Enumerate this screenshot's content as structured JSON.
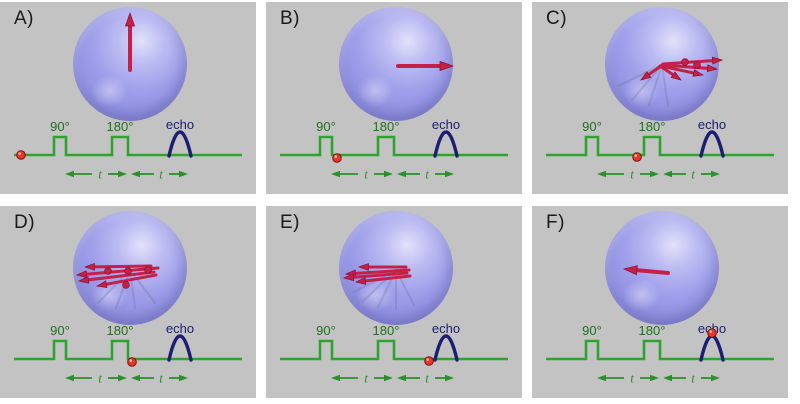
{
  "colors": {
    "panel_bg": "#c3c3c3",
    "pulse_green": "#2da42d",
    "label_green": "#20701f",
    "t_green": "#2b8f2b",
    "echo_navy": "#1d1d72",
    "ball_red": "#e5372b",
    "arrow_red": "#c52148",
    "arrow_dark": "#8f1030"
  },
  "pulse": {
    "p90": "90°",
    "p180": "180°",
    "echo": "echo",
    "t": "t"
  },
  "panels": [
    {
      "label": "A)",
      "ball": [
        13,
        37
      ],
      "arrows": [
        [
          130,
          68,
          130,
          11
        ]
      ],
      "dots": [],
      "ghosts": []
    },
    {
      "label": "B)",
      "ball": [
        63,
        40
      ],
      "arrows": [
        [
          132,
          64,
          187,
          64
        ]
      ],
      "dots": [],
      "ghosts": []
    },
    {
      "label": "C)",
      "ball": [
        97,
        39
      ],
      "arrows": [
        [
          131,
          62,
          190,
          58
        ],
        [
          130,
          63,
          185,
          67
        ],
        [
          129,
          64,
          171,
          73
        ],
        [
          128,
          64,
          149,
          78
        ],
        [
          129,
          64,
          109,
          78
        ]
      ],
      "dots": [
        [
          153,
          60
        ],
        [
          165,
          63
        ]
      ],
      "ghosts": [
        [
          130,
          63,
          100,
          98
        ],
        [
          130,
          63,
          117,
          103
        ],
        [
          130,
          63,
          136,
          104
        ],
        [
          130,
          63,
          86,
          84
        ]
      ]
    },
    {
      "label": "D)",
      "ball": [
        124,
        40
      ],
      "arrows": [
        [
          158,
          62,
          77,
          69
        ],
        [
          154,
          66,
          79,
          75
        ],
        [
          151,
          60,
          85,
          61
        ],
        [
          156,
          69,
          97,
          80
        ]
      ],
      "dots": [
        [
          108,
          65
        ],
        [
          128,
          65
        ],
        [
          148,
          64
        ],
        [
          126,
          79
        ]
      ],
      "ghosts": [
        [
          130,
          64,
          98,
          97
        ],
        [
          130,
          64,
          116,
          102
        ],
        [
          130,
          64,
          135,
          102
        ],
        [
          130,
          64,
          155,
          97
        ]
      ]
    },
    {
      "label": "E)",
      "ball": [
        155,
        39
      ],
      "arrows": [
        [
          143,
          64,
          80,
          68
        ],
        [
          141,
          67,
          78,
          72
        ],
        [
          144,
          70,
          90,
          76
        ],
        [
          140,
          61,
          93,
          61
        ]
      ],
      "dots": [],
      "ghosts": [
        [
          130,
          64,
          96,
          96
        ],
        [
          130,
          64,
          112,
          101
        ],
        [
          130,
          64,
          130,
          103
        ],
        [
          130,
          64,
          148,
          99
        ],
        [
          130,
          64,
          88,
          86
        ]
      ]
    },
    {
      "label": "F)",
      "ball": [
        172,
        11
      ],
      "arrows": [
        [
          136,
          67,
          92,
          63
        ]
      ],
      "dots": [],
      "ghosts": []
    }
  ]
}
